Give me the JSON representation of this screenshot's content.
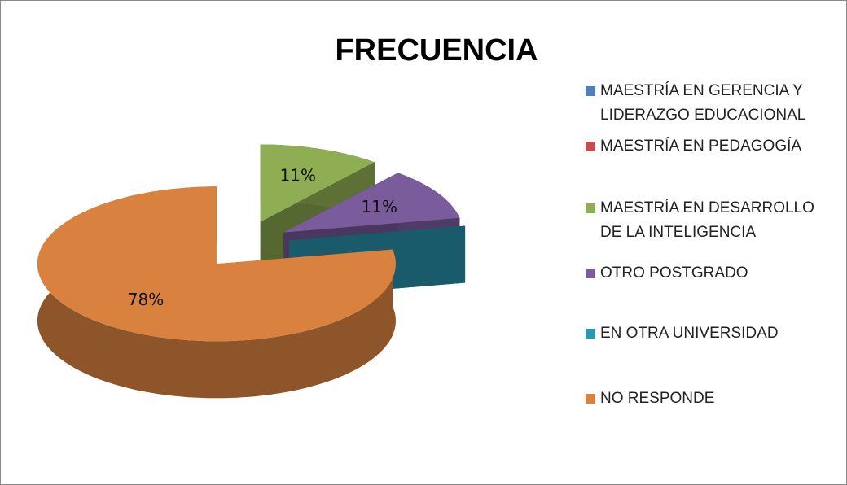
{
  "chart_data": {
    "type": "pie",
    "title": "FRECUENCIA",
    "categories": [
      "MAESTRÍA EN GERENCIA Y LIDERAZGO EDUCACIONAL",
      "MAESTRÍA EN PEDAGOGÍA",
      "MAESTRÍA EN DESARROLLO DE LA INTELIGENCIA",
      "OTRO POSTGRADO",
      "EN OTRA UNIVERSIDAD",
      "NO RESPONDE"
    ],
    "values": [
      0,
      0,
      11,
      11,
      0,
      78
    ],
    "value_labels": [
      null,
      null,
      "11%",
      "11%",
      null,
      "78%"
    ],
    "colors": [
      "#4f81bd",
      "#c0504d",
      "#8fae54",
      "#7a5c9c",
      "#2b98b3",
      "#d9823f"
    ],
    "legend": "right"
  }
}
